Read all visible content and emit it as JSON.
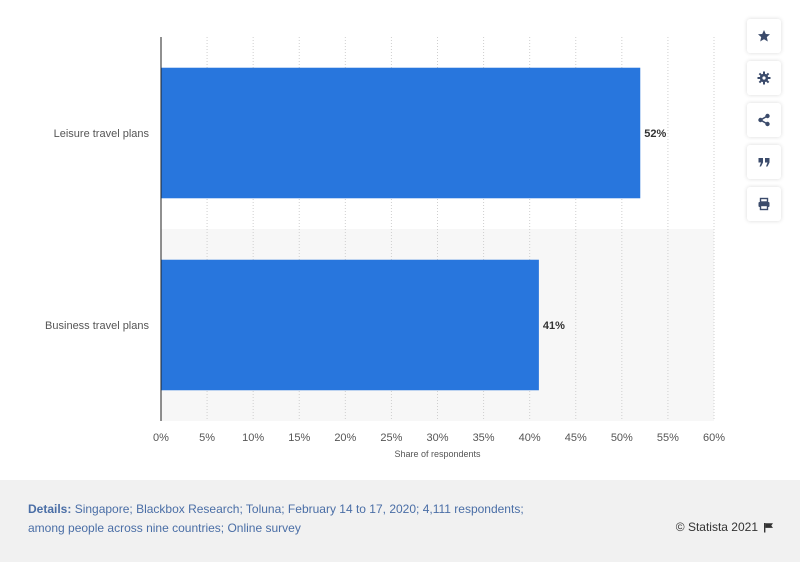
{
  "chart_data": {
    "type": "bar",
    "orientation": "horizontal",
    "categories": [
      "Leisure travel plans",
      "Business travel plans"
    ],
    "values": [
      52,
      41
    ],
    "value_labels": [
      "52%",
      "41%"
    ],
    "xlabel": "Share of respondents",
    "ylabel": "",
    "xlim": [
      0,
      60
    ],
    "x_ticks": [
      "0%",
      "5%",
      "10%",
      "15%",
      "20%",
      "25%",
      "30%",
      "35%",
      "40%",
      "45%",
      "50%",
      "55%",
      "60%"
    ],
    "grid": "vertical dotted",
    "bar_color": "#2876dd"
  },
  "footer": {
    "details_label": "Details:",
    "details_line1": " Singapore; Blackbox Research; Toluna; February 14 to 17, 2020; 4,111 respondents;",
    "details_line2": "among people across nine countries; Online survey",
    "copyright": "© Statista 2021"
  },
  "toolbar": {
    "icons": [
      "star-icon",
      "gear-icon",
      "share-icon",
      "quote-icon",
      "print-icon"
    ]
  }
}
